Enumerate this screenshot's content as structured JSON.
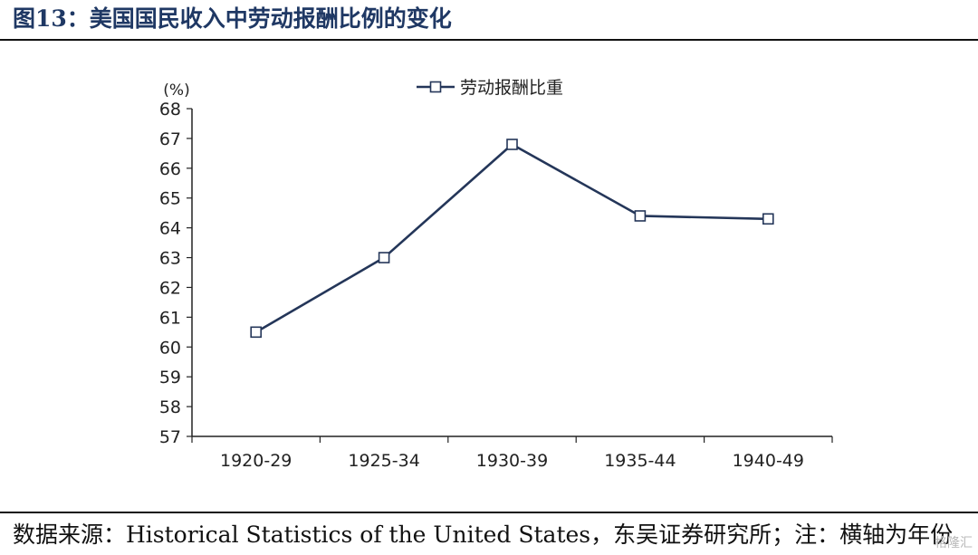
{
  "figure": {
    "title": "图13：美国国民收入中劳动报酬比例的变化",
    "source": "数据来源：Historical Statistics of the United States，东吴证券研究所；注：横轴为年份",
    "watermark": "格隆汇"
  },
  "chart_data": {
    "type": "line",
    "unit_label": "(%)",
    "categories": [
      "1920-29",
      "1925-34",
      "1930-39",
      "1935-44",
      "1940-49"
    ],
    "series": [
      {
        "name": "劳动报酬比重",
        "values": [
          60.5,
          63.0,
          66.8,
          64.4,
          64.3
        ],
        "color": "#243659",
        "marker": "hollow-square"
      }
    ],
    "yticks": [
      57,
      58,
      59,
      60,
      61,
      62,
      63,
      64,
      65,
      66,
      67,
      68
    ],
    "ylim": [
      57,
      68
    ],
    "legend_position": "top-center",
    "grid": false
  }
}
